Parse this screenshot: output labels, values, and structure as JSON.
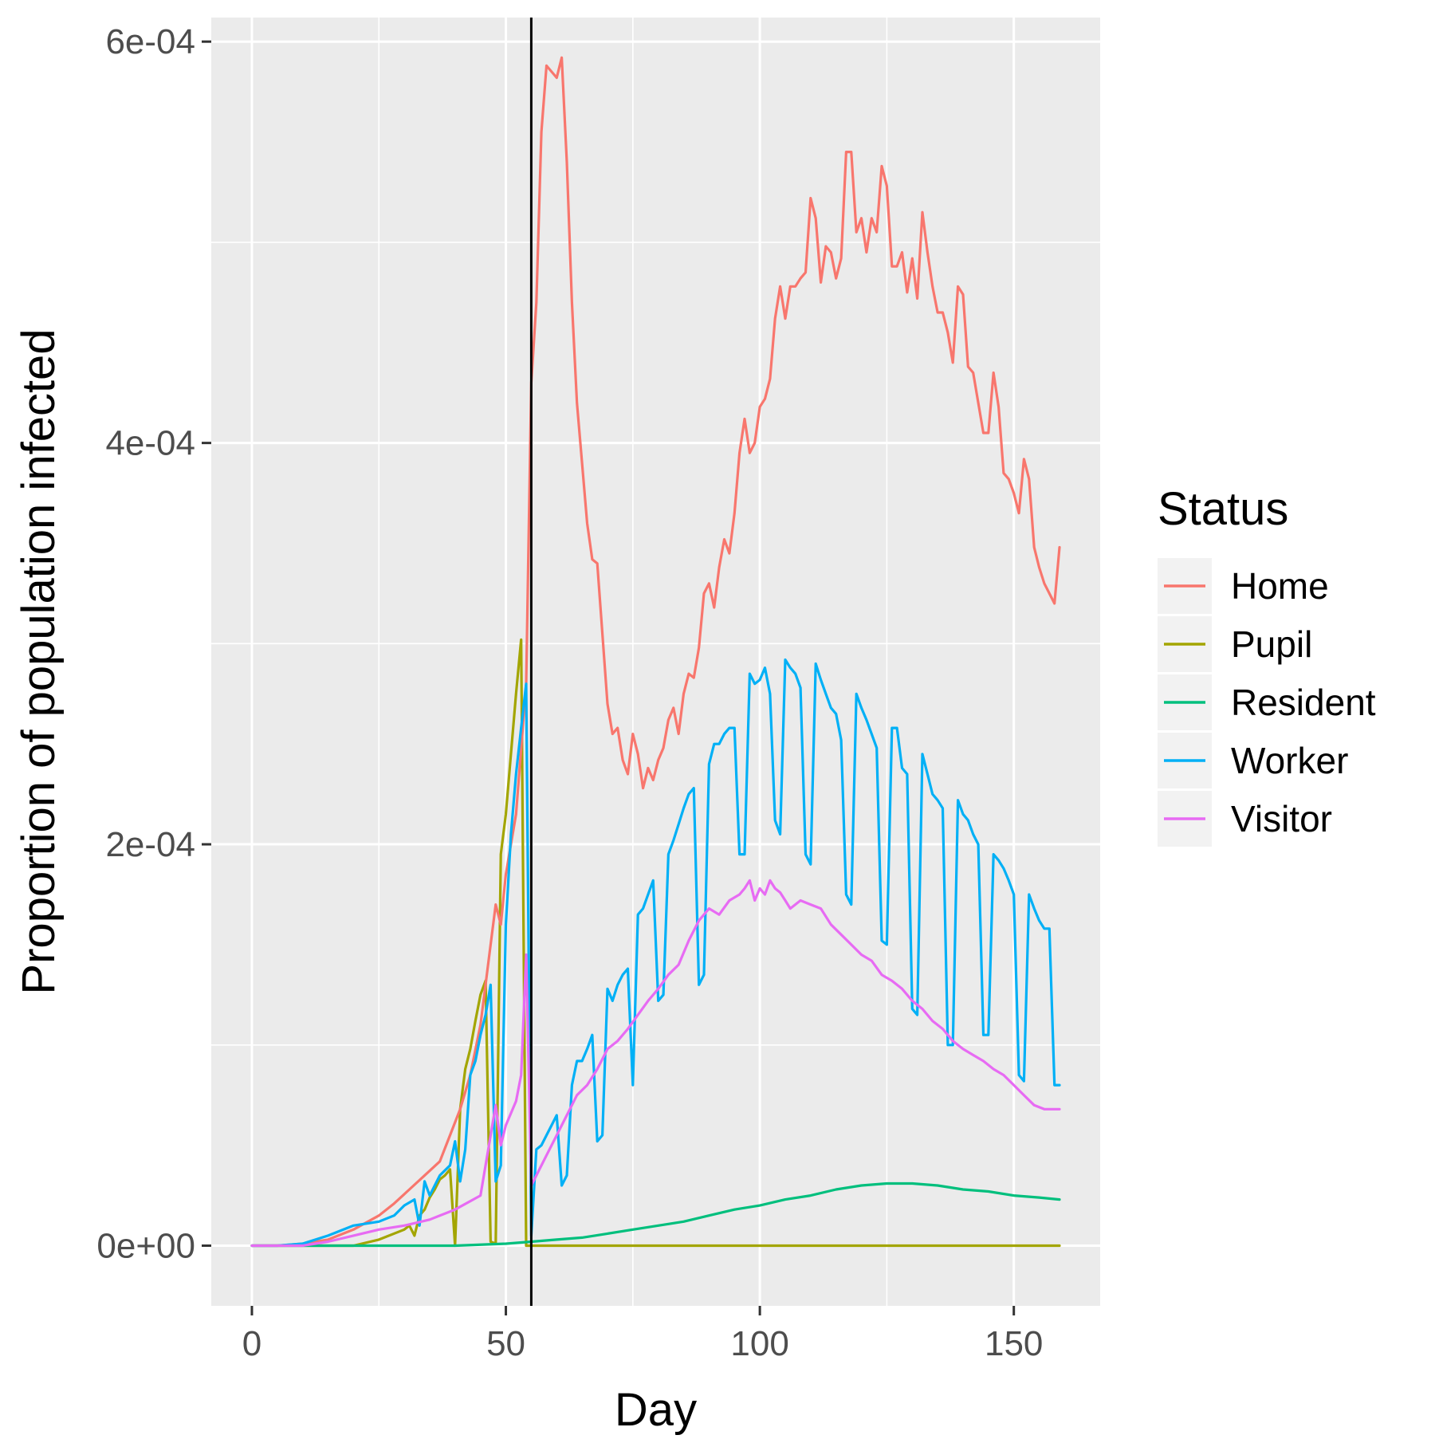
{
  "chart_data": {
    "type": "line",
    "xlabel": "Day",
    "ylabel": "Proportion of population infected",
    "xlim": [
      -8,
      167
    ],
    "ylim": [
      -3e-05,
      0.000612
    ],
    "xticks": [
      0,
      50,
      100,
      150
    ],
    "xtick_labels": [
      "0",
      "50",
      "100",
      "150"
    ],
    "yticks": [
      0,
      0.0002,
      0.0004,
      0.0006
    ],
    "ytick_labels": [
      "0e+00",
      "2e-04",
      "4e-04",
      "6e-04"
    ],
    "grid": true,
    "vline_x": 55,
    "legend": {
      "title": "Status",
      "position": "right"
    },
    "series": [
      {
        "name": "Home",
        "color": "#F8766D",
        "x": [
          0,
          5,
          10,
          15,
          20,
          25,
          28,
          31,
          34,
          37,
          39,
          41,
          43,
          45,
          47,
          48,
          49,
          50,
          52,
          54,
          55,
          56,
          57,
          58,
          60,
          61,
          62,
          63,
          64,
          66,
          67,
          68,
          70,
          71,
          72,
          73,
          74,
          75,
          76,
          77,
          78,
          79,
          80,
          81,
          82,
          83,
          84,
          85,
          86,
          87,
          88,
          89,
          90,
          91,
          92,
          93,
          94,
          95,
          96,
          97,
          98,
          99,
          100,
          101,
          102,
          103,
          104,
          105,
          106,
          107,
          108,
          109,
          110,
          111,
          112,
          113,
          114,
          115,
          116,
          117,
          118,
          119,
          120,
          121,
          122,
          123,
          124,
          125,
          126,
          127,
          128,
          129,
          130,
          131,
          132,
          133,
          134,
          135,
          136,
          137,
          138,
          139,
          140,
          141,
          142,
          143,
          144,
          145,
          146,
          147,
          148,
          149,
          150,
          151,
          152,
          153,
          154,
          155,
          156,
          157,
          158,
          159
        ],
        "y": [
          0,
          0,
          1e-06,
          3e-06,
          8e-06,
          1.5e-05,
          2.1e-05,
          2.8e-05,
          3.5e-05,
          4.2e-05,
          5.5e-05,
          6.8e-05,
          8.5e-05,
          0.00011,
          0.00015,
          0.00017,
          0.00016,
          0.000185,
          0.000215,
          0.00028,
          0.00043,
          0.00047,
          0.000555,
          0.000588,
          0.000582,
          0.000592,
          0.00054,
          0.00047,
          0.00042,
          0.00036,
          0.000342,
          0.00034,
          0.00027,
          0.000255,
          0.000258,
          0.000242,
          0.000235,
          0.000255,
          0.000245,
          0.000228,
          0.000238,
          0.000232,
          0.000242,
          0.000248,
          0.000262,
          0.000268,
          0.000255,
          0.000275,
          0.000285,
          0.000283,
          0.000298,
          0.000325,
          0.00033,
          0.000318,
          0.000338,
          0.000352,
          0.000345,
          0.000365,
          0.000395,
          0.000412,
          0.000395,
          0.0004,
          0.000418,
          0.000422,
          0.000432,
          0.000462,
          0.000478,
          0.000462,
          0.000478,
          0.000478,
          0.000482,
          0.000485,
          0.000522,
          0.000512,
          0.00048,
          0.000498,
          0.000495,
          0.000482,
          0.000492,
          0.000545,
          0.000545,
          0.000505,
          0.000512,
          0.000495,
          0.000512,
          0.000505,
          0.000538,
          0.000528,
          0.000488,
          0.000488,
          0.000495,
          0.000475,
          0.000492,
          0.000472,
          0.000515,
          0.000495,
          0.000478,
          0.000465,
          0.000465,
          0.000455,
          0.00044,
          0.000478,
          0.000474,
          0.000438,
          0.000435,
          0.00042,
          0.000405,
          0.000405,
          0.000435,
          0.000418,
          0.000385,
          0.000382,
          0.000375,
          0.000365,
          0.000392,
          0.000382,
          0.000348,
          0.000338,
          0.00033,
          0.000325,
          0.00032,
          0.000348
        ]
      },
      {
        "name": "Pupil",
        "color": "#A3A500",
        "x": [
          0,
          20,
          25,
          30,
          31,
          32,
          33,
          34,
          35,
          36,
          37,
          38,
          39,
          40,
          41,
          42,
          43,
          44,
          45,
          46,
          47,
          48,
          49,
          50,
          51,
          52,
          53,
          54,
          55,
          60,
          80,
          100,
          120,
          140,
          159
        ],
        "y": [
          0,
          0,
          3e-06,
          8e-06,
          1e-05,
          5e-06,
          1.5e-05,
          1.8e-05,
          2.4e-05,
          2.8e-05,
          3.3e-05,
          3.5e-05,
          3.8e-05,
          0,
          6.8e-05,
          8.8e-05,
          9.8e-05,
          0.000112,
          0.000125,
          0.000132,
          2e-06,
          1e-06,
          0.000195,
          0.000215,
          0.000245,
          0.000275,
          0.000302,
          0,
          0,
          0,
          0,
          0,
          0,
          0,
          0
        ]
      },
      {
        "name": "Resident",
        "color": "#00BF7D",
        "x": [
          0,
          40,
          50,
          55,
          60,
          65,
          70,
          75,
          80,
          85,
          90,
          95,
          100,
          105,
          110,
          115,
          120,
          125,
          130,
          135,
          140,
          145,
          150,
          155,
          159
        ],
        "y": [
          0,
          0,
          1e-06,
          2e-06,
          3e-06,
          4e-06,
          6e-06,
          8e-06,
          1e-05,
          1.2e-05,
          1.5e-05,
          1.8e-05,
          2e-05,
          2.3e-05,
          2.5e-05,
          2.8e-05,
          3e-05,
          3.1e-05,
          3.1e-05,
          3e-05,
          2.8e-05,
          2.7e-05,
          2.5e-05,
          2.4e-05,
          2.3e-05
        ]
      },
      {
        "name": "Worker",
        "color": "#00B0F6",
        "x": [
          0,
          5,
          10,
          15,
          20,
          25,
          28,
          30,
          32,
          33,
          34,
          35,
          37,
          39,
          40,
          41,
          42,
          43,
          44,
          45,
          46,
          47,
          48,
          49,
          50,
          51,
          52,
          53,
          54,
          55,
          56,
          57,
          58,
          59,
          60,
          61,
          62,
          63,
          64,
          65,
          66,
          67,
          68,
          69,
          70,
          71,
          72,
          73,
          74,
          75,
          76,
          77,
          78,
          79,
          80,
          81,
          82,
          83,
          84,
          85,
          86,
          87,
          88,
          89,
          90,
          91,
          92,
          93,
          94,
          95,
          96,
          97,
          98,
          99,
          100,
          101,
          102,
          103,
          104,
          105,
          106,
          107,
          108,
          109,
          110,
          111,
          112,
          113,
          114,
          115,
          116,
          117,
          118,
          119,
          120,
          121,
          122,
          123,
          124,
          125,
          126,
          127,
          128,
          129,
          130,
          131,
          132,
          133,
          134,
          135,
          136,
          137,
          138,
          139,
          140,
          141,
          142,
          143,
          144,
          145,
          146,
          147,
          148,
          149,
          150,
          151,
          152,
          153,
          154,
          155,
          156,
          157,
          158,
          159
        ],
        "y": [
          0,
          0,
          1e-06,
          5e-06,
          1e-05,
          1.2e-05,
          1.5e-05,
          2e-05,
          2.3e-05,
          1e-05,
          3.2e-05,
          2.5e-05,
          3.5e-05,
          4e-05,
          5.2e-05,
          3.2e-05,
          4.8e-05,
          8.5e-05,
          9.2e-05,
          0.000105,
          0.000115,
          0.00013,
          3.2e-05,
          4e-05,
          0.00016,
          0.000205,
          0.000235,
          0.000258,
          0.00028,
          5e-06,
          4.8e-05,
          5e-05,
          5.5e-05,
          6e-05,
          6.5e-05,
          3e-05,
          3.5e-05,
          8e-05,
          9.2e-05,
          9.2e-05,
          9.8e-05,
          0.000105,
          5.2e-05,
          5.5e-05,
          0.000128,
          0.000122,
          0.00013,
          0.000135,
          0.000138,
          8e-05,
          0.000165,
          0.000168,
          0.000175,
          0.000182,
          0.000122,
          0.000125,
          0.000195,
          0.000202,
          0.00021,
          0.000218,
          0.000225,
          0.000228,
          0.00013,
          0.000135,
          0.00024,
          0.00025,
          0.00025,
          0.000255,
          0.000258,
          0.000258,
          0.000195,
          0.000195,
          0.000285,
          0.00028,
          0.000282,
          0.000288,
          0.000275,
          0.000212,
          0.000205,
          0.000292,
          0.000288,
          0.000285,
          0.000278,
          0.000195,
          0.00019,
          0.00029,
          0.000282,
          0.000275,
          0.000268,
          0.000265,
          0.000252,
          0.000175,
          0.00017,
          0.000275,
          0.000268,
          0.000262,
          0.000255,
          0.000248,
          0.000152,
          0.00015,
          0.000258,
          0.000258,
          0.000238,
          0.000235,
          0.000118,
          0.000115,
          0.000245,
          0.000235,
          0.000225,
          0.000222,
          0.000218,
          0.0001,
          0.0001,
          0.000222,
          0.000215,
          0.000212,
          0.000205,
          0.0002,
          0.000105,
          0.000105,
          0.000195,
          0.000192,
          0.000188,
          0.000182,
          0.000175,
          8.5e-05,
          8.2e-05,
          0.000175,
          0.000168,
          0.000162,
          0.000158,
          0.000158,
          8e-05,
          8e-05
        ]
      },
      {
        "name": "Visitor",
        "color": "#E76BF3",
        "x": [
          0,
          10,
          15,
          20,
          25,
          30,
          35,
          40,
          45,
          48,
          49,
          50,
          52,
          53,
          54,
          55,
          56,
          58,
          60,
          62,
          64,
          66,
          68,
          70,
          72,
          74,
          76,
          78,
          80,
          82,
          84,
          86,
          88,
          90,
          92,
          94,
          96,
          97,
          98,
          99,
          100,
          101,
          102,
          103,
          104,
          105,
          106,
          108,
          110,
          112,
          114,
          116,
          118,
          120,
          122,
          124,
          126,
          128,
          130,
          132,
          134,
          136,
          138,
          140,
          142,
          144,
          146,
          148,
          150,
          152,
          154,
          156,
          158,
          159
        ],
        "y": [
          0,
          0,
          2e-06,
          5e-06,
          8e-06,
          1e-05,
          1.3e-05,
          1.8e-05,
          2.5e-05,
          7e-05,
          5e-05,
          6e-05,
          7.2e-05,
          8.5e-05,
          0.000145,
          3e-05,
          3.5e-05,
          4.5e-05,
          5.5e-05,
          6.5e-05,
          7.5e-05,
          8e-05,
          8.8e-05,
          9.8e-05,
          0.000102,
          0.000108,
          0.000115,
          0.000122,
          0.000128,
          0.000135,
          0.00014,
          0.000152,
          0.000162,
          0.000168,
          0.000165,
          0.000172,
          0.000175,
          0.000178,
          0.000182,
          0.000172,
          0.000178,
          0.000175,
          0.000182,
          0.000178,
          0.000176,
          0.000172,
          0.000168,
          0.000172,
          0.00017,
          0.000168,
          0.00016,
          0.000155,
          0.00015,
          0.000145,
          0.000142,
          0.000135,
          0.000132,
          0.000128,
          0.000122,
          0.000118,
          0.000112,
          0.000108,
          0.000102,
          9.8e-05,
          9.5e-05,
          9.2e-05,
          8.8e-05,
          8.5e-05,
          8e-05,
          7.5e-05,
          7e-05,
          6.8e-05,
          6.8e-05,
          6.8e-05
        ]
      }
    ]
  }
}
